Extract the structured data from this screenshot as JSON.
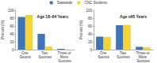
{
  "chart_data": [
    {
      "type": "bar",
      "title": "Age 18–64 Years",
      "y_label": "Percent (%)",
      "categories": [
        "One Source",
        "Two Sources",
        "Three or More Sources"
      ],
      "series": [
        {
          "name": "Statewide",
          "color": "#3f74b9",
          "values": [
            83,
            40,
            2
          ]
        },
        {
          "name": "CNC Students",
          "color": "#f2d535",
          "values": [
            88,
            8,
            0
          ]
        }
      ],
      "ylim": [
        0,
        100
      ],
      "yticks": [
        0,
        20,
        40,
        60,
        80,
        100
      ],
      "grid": false,
      "legend": "top"
    },
    {
      "type": "bar",
      "title": "Age ≥65 Years",
      "y_label": "Percent (%)",
      "categories": [
        "One Source",
        "Two Sources",
        "Three or More Sources"
      ],
      "series": [
        {
          "name": "Statewide",
          "color": "#3f74b9",
          "values": [
            33,
            62,
            7
          ]
        },
        {
          "name": "CNC Students",
          "color": "#f2d535",
          "values": [
            32,
            63,
            6
          ]
        }
      ],
      "ylim": [
        0,
        100
      ],
      "yticks": [
        0,
        20,
        40,
        60,
        80,
        100
      ],
      "grid": false
    }
  ]
}
